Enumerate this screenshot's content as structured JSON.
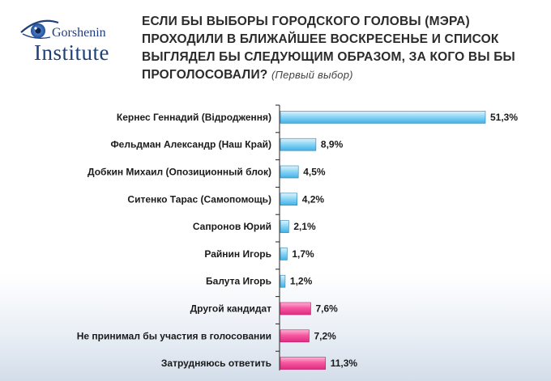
{
  "logo": {
    "name": "Gorshenin",
    "institute": "Institute",
    "icon": "eye-logo-icon"
  },
  "title": {
    "main": "ЕСЛИ БЫ ВЫБОРЫ ГОРОДСКОГО ГОЛОВЫ (МЭРА) ПРОХОДИЛИ В БЛИЖАЙШЕЕ ВОСКРЕСЕНЬЕ И СПИСОК ВЫГЛЯДЕЛ БЫ СЛЕДУЮЩИМ ОБРАЗОМ, ЗА КОГО ВЫ БЫ ПРОГОЛОСОВАЛИ?",
    "note": "(Первый выбор)"
  },
  "colors": {
    "candidate": "#5bc0ee",
    "other": "#f0479a",
    "axis": "#222222"
  },
  "chart_data": {
    "type": "bar",
    "orientation": "horizontal",
    "categories": [
      "Кернес Геннадий (Відродження)",
      "Фельдман Александр (Наш Край)",
      "Добкин Михаил (Опозиционный  блок)",
      "Ситенко Тарас (Самопомощь)",
      "Сапронов Юрий",
      "Райнин Игорь",
      "Балута Игорь",
      "Другой кандидат",
      "Не принимал бы участия в голосовании",
      "Затрудняюсь ответить"
    ],
    "values": [
      51.3,
      8.9,
      4.5,
      4.2,
      2.1,
      1.7,
      1.2,
      7.6,
      7.2,
      11.3
    ],
    "value_labels": [
      "51,3%",
      "8,9%",
      "4,5%",
      "4,2%",
      "2,1%",
      "1,7%",
      "1,2%",
      "7,6%",
      "7,2%",
      "11,3%"
    ],
    "groups": [
      "candidate",
      "candidate",
      "candidate",
      "candidate",
      "candidate",
      "candidate",
      "candidate",
      "other",
      "other",
      "other"
    ],
    "xlim": [
      0,
      51.3
    ],
    "grid": false,
    "legend": "none"
  }
}
